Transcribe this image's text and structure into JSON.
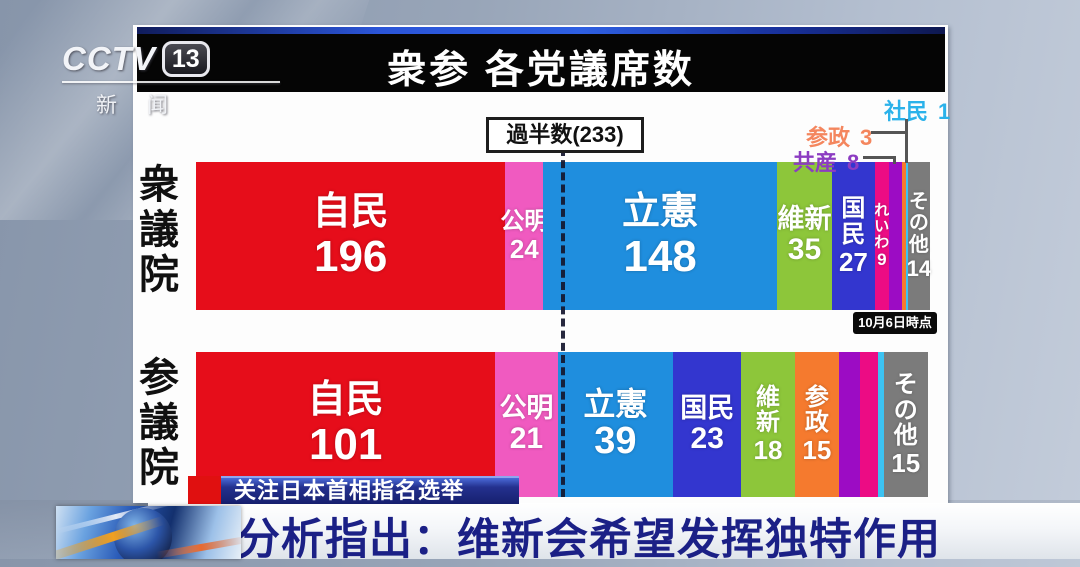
{
  "channel": {
    "logo_main": "CCTV",
    "logo_number": "13",
    "logo_sub": "新闻"
  },
  "ticker": {
    "topic": "关注日本首相指名选举",
    "headline": "分析指出：维新会希望发挥独特作用"
  },
  "chart_data": {
    "type": "bar",
    "orientation": "horizontal-stacked",
    "title": "衆参 各党議席数",
    "majority": {
      "label": "過半数(233)",
      "value": 233
    },
    "as_of": "10月6日時点",
    "annotations": [
      {
        "label": "社民",
        "value": "1",
        "color": "#2bb2ea"
      },
      {
        "label": "参政",
        "value": "3",
        "color": "#f4865e"
      },
      {
        "label": "共産",
        "value": "8",
        "color": "#8c3cc2"
      }
    ],
    "series": [
      {
        "name": "衆議院",
        "total": 465,
        "segments": [
          {
            "party": "自民",
            "seats": 196,
            "color": "#e60d1a",
            "layout": "h",
            "show_label": true
          },
          {
            "party": "公明",
            "seats": 24,
            "color": "#f05ac0",
            "layout": "h",
            "show_label": true
          },
          {
            "party": "立憲",
            "seats": 148,
            "color": "#1f8ede",
            "layout": "h",
            "show_label": true
          },
          {
            "party": "維新",
            "seats": 35,
            "color": "#8dc63a",
            "layout": "h",
            "show_label": true
          },
          {
            "party": "国民",
            "seats": 27,
            "color": "#3336cf",
            "layout": "v",
            "show_label": true
          },
          {
            "party": "れいわ",
            "seats": 9,
            "color": "#ec0c84",
            "layout": "v",
            "show_label": true
          },
          {
            "party": "共産",
            "seats": 8,
            "color": "#9c0cc4",
            "layout": "v",
            "show_label": false
          },
          {
            "party": "参政",
            "seats": 3,
            "color": "#f57a2e",
            "layout": "v",
            "show_label": false
          },
          {
            "party": "社民",
            "seats": 1,
            "color": "#3cc3f2",
            "layout": "v",
            "show_label": false
          },
          {
            "party": "その他",
            "seats": 14,
            "color": "#7b7b7b",
            "layout": "v",
            "show_label": true
          }
        ]
      },
      {
        "name": "参議院",
        "total": 248,
        "segments": [
          {
            "party": "自民",
            "seats": 101,
            "color": "#e60d1a",
            "layout": "h",
            "show_label": true
          },
          {
            "party": "公明",
            "seats": 21,
            "color": "#f05ac0",
            "layout": "h",
            "show_label": true
          },
          {
            "party": "立憲",
            "seats": 39,
            "color": "#1f8ede",
            "layout": "h",
            "show_label": true
          },
          {
            "party": "国民",
            "seats": 23,
            "color": "#3336cf",
            "layout": "h",
            "show_label": true
          },
          {
            "party": "維新",
            "seats": 18,
            "color": "#8dc63a",
            "layout": "v",
            "show_label": true
          },
          {
            "party": "参政",
            "seats": 15,
            "color": "#f57a2e",
            "layout": "v",
            "show_label": true
          },
          {
            "party": "",
            "seats": 7,
            "color": "#9c0cc4",
            "layout": "v",
            "show_label": false
          },
          {
            "party": "",
            "seats": 6,
            "color": "#ec0c84",
            "layout": "v",
            "show_label": false
          },
          {
            "party": "",
            "seats": 2,
            "color": "#3cc3f2",
            "layout": "v",
            "show_label": false
          },
          {
            "party": "その他",
            "seats": 15,
            "color": "#7b7b7b",
            "layout": "v",
            "show_label": true
          }
        ]
      }
    ]
  }
}
